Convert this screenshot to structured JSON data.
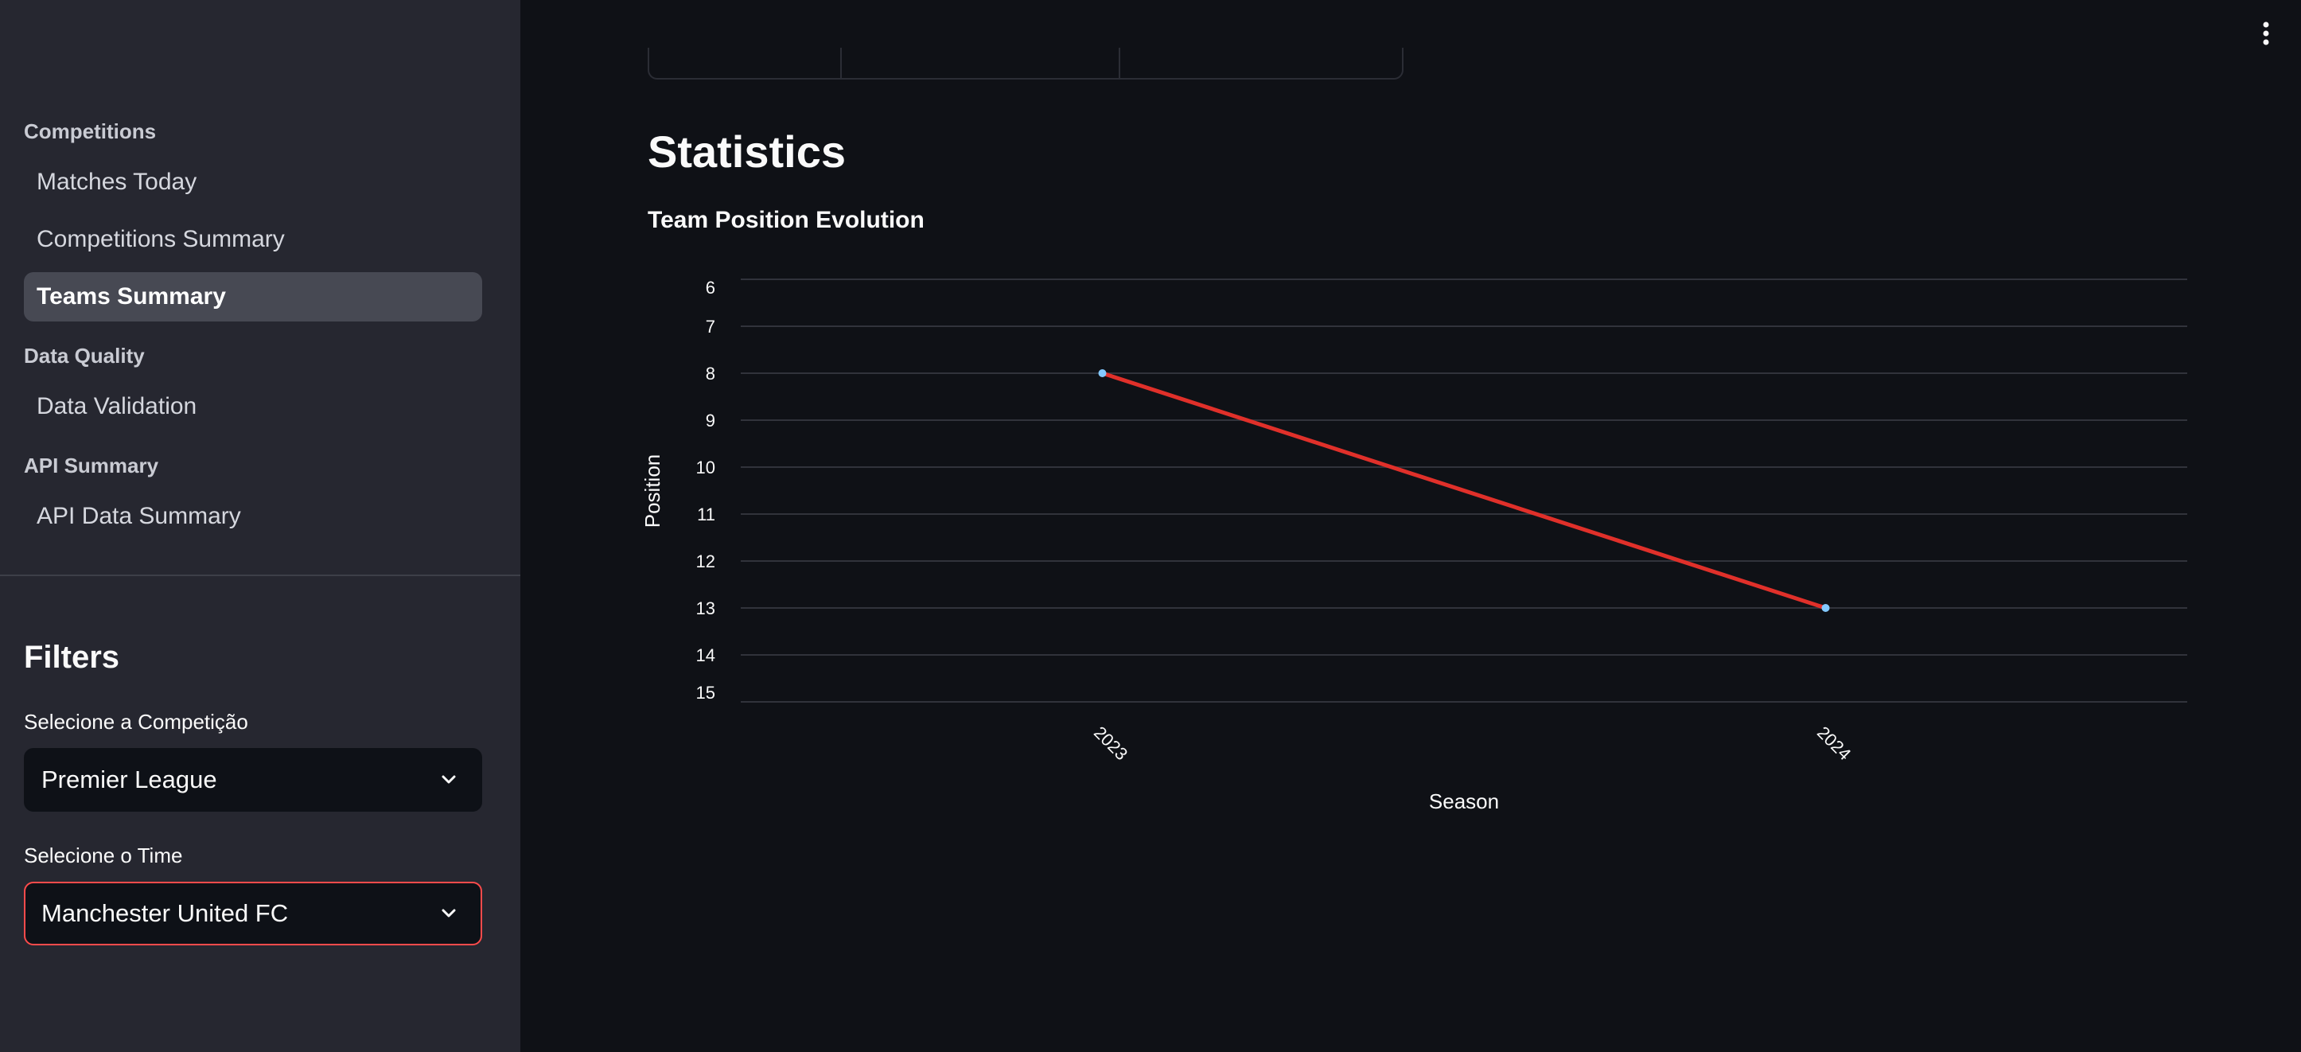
{
  "sidebar": {
    "sections": [
      {
        "title": "Competitions"
      },
      {
        "title": "Data Quality"
      },
      {
        "title": "API Summary"
      }
    ],
    "items": [
      {
        "label": "Matches Today",
        "active": false
      },
      {
        "label": "Competitions Summary",
        "active": false
      },
      {
        "label": "Teams Summary",
        "active": true
      },
      {
        "label": "Data Validation",
        "active": false
      },
      {
        "label": "API Data Summary",
        "active": false
      }
    ]
  },
  "filters": {
    "title": "Filters",
    "competition_label": "Selecione a Competição",
    "competition_value": "Premier League",
    "team_label": "Selecione o Time",
    "team_value": "Manchester United FC"
  },
  "main": {
    "title": "Statistics",
    "chart_title": "Team Position Evolution"
  },
  "colors": {
    "line": "#e0302a",
    "point": "#83c9ff",
    "focus_border": "#ff4b4b"
  },
  "chart_data": {
    "type": "line",
    "title": "Team Position Evolution",
    "xlabel": "Season",
    "ylabel": "Position",
    "categories": [
      "2023",
      "2024"
    ],
    "series": [
      {
        "values": [
          8,
          13
        ]
      }
    ],
    "yticks": [
      "6",
      "7",
      "8",
      "9",
      "10",
      "11",
      "12",
      "13",
      "14",
      "15"
    ],
    "ylim": [
      6,
      15
    ],
    "y_reversed": true,
    "grid": true
  }
}
